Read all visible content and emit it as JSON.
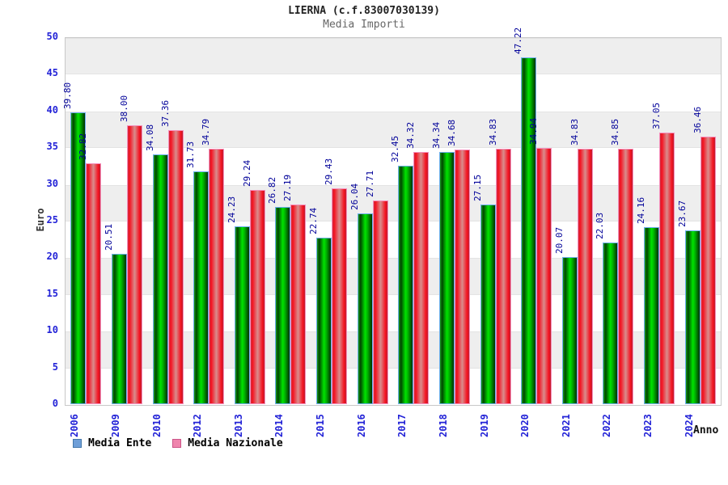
{
  "header": {
    "title": "LIERNA (c.f.83007030139)",
    "subtitle": "Media Importi"
  },
  "chart_data": {
    "type": "bar",
    "title": "LIERNA (c.f.83007030139)",
    "subtitle": "Media Importi",
    "xlabel": "Anno",
    "ylabel": "Euro",
    "ylim": [
      0,
      50
    ],
    "ytick_step": 5,
    "grid": "alternating-horizontal-bands",
    "legend_position": "bottom-left",
    "categories": [
      "2006",
      "2009",
      "2010",
      "2012",
      "2013",
      "2014",
      "2015",
      "2016",
      "2017",
      "2018",
      "2019",
      "2020",
      "2021",
      "2022",
      "2023",
      "2024"
    ],
    "series": [
      {
        "name": "Media Ente",
        "bar_color": "green-gradient",
        "bar_color_hex": "#00e400",
        "bar_border_hex": "#6fb0ef",
        "values": [
          39.8,
          20.51,
          34.08,
          31.73,
          24.23,
          26.82,
          22.74,
          26.04,
          32.45,
          34.34,
          27.15,
          47.22,
          20.07,
          22.03,
          24.16,
          23.67
        ]
      },
      {
        "name": "Media Nazionale",
        "bar_color": "red-gradient",
        "bar_color_hex": "#f50f1e",
        "bar_border_hex": "#f690bd",
        "values": [
          32.82,
          38.0,
          37.36,
          34.79,
          29.24,
          27.19,
          29.43,
          27.71,
          34.32,
          34.68,
          34.83,
          34.94,
          34.83,
          34.85,
          37.05,
          36.46
        ]
      }
    ],
    "value_label_decimals": 2
  },
  "legend": {
    "items": [
      {
        "label": "Media Ente",
        "swatch_fill": "#6f9fd8",
        "swatch_border": "#4477aa"
      },
      {
        "label": "Media Nazionale",
        "swatch_fill": "#ef85ad",
        "swatch_border": "#cc5588"
      }
    ]
  },
  "colors": {
    "axis_tick_text": "#2323d7",
    "value_label_text": "#000099",
    "band_gray": "#eeeeee",
    "band_white": "#ffffff",
    "plot_border": "#c8c8c8",
    "title_text": "#222222",
    "subtitle_text": "#666666"
  }
}
